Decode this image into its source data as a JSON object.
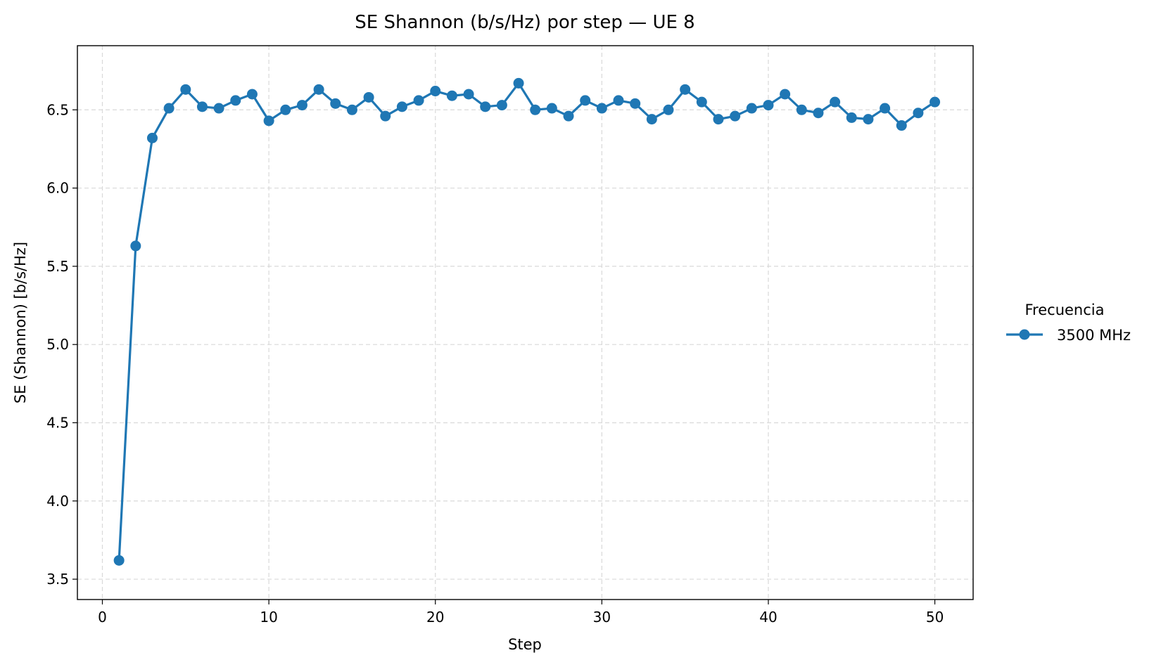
{
  "chart_data": {
    "type": "line",
    "title": "SE Shannon (b/s/Hz) por step — UE 8",
    "xlabel": "Step",
    "ylabel": "SE (Shannon) [b/s/Hz]",
    "xlim": [
      -1.5,
      52.3
    ],
    "ylim": [
      3.37,
      6.91
    ],
    "xticks": [
      0,
      10,
      20,
      30,
      40,
      50
    ],
    "xtick_labels": [
      "0",
      "10",
      "20",
      "30",
      "40",
      "50"
    ],
    "yticks": [
      3.5,
      4.0,
      4.5,
      5.0,
      5.5,
      6.0,
      6.5
    ],
    "ytick_labels": [
      "3.5",
      "4.0",
      "4.5",
      "5.0",
      "5.5",
      "6.0",
      "6.5"
    ],
    "grid": true,
    "legend": {
      "title": "Frecuencia",
      "placement": "right-outside"
    },
    "x": [
      1,
      2,
      3,
      4,
      5,
      6,
      7,
      8,
      9,
      10,
      11,
      12,
      13,
      14,
      15,
      16,
      17,
      18,
      19,
      20,
      21,
      22,
      23,
      24,
      25,
      26,
      27,
      28,
      29,
      30,
      31,
      32,
      33,
      34,
      35,
      36,
      37,
      38,
      39,
      40,
      41,
      42,
      43,
      44,
      45,
      46,
      47,
      48,
      49,
      50
    ],
    "series": [
      {
        "name": "3500 MHz",
        "color": "#1f77b4",
        "marker": "circle",
        "values": [
          3.62,
          5.63,
          6.32,
          6.51,
          6.63,
          6.52,
          6.51,
          6.56,
          6.6,
          6.43,
          6.5,
          6.53,
          6.63,
          6.54,
          6.5,
          6.58,
          6.46,
          6.52,
          6.56,
          6.62,
          6.59,
          6.6,
          6.52,
          6.53,
          6.67,
          6.5,
          6.51,
          6.46,
          6.56,
          6.51,
          6.56,
          6.54,
          6.44,
          6.5,
          6.63,
          6.55,
          6.44,
          6.46,
          6.51,
          6.53,
          6.6,
          6.5,
          6.48,
          6.55,
          6.45,
          6.44,
          6.51,
          6.4,
          6.48,
          6.55
        ]
      }
    ]
  }
}
